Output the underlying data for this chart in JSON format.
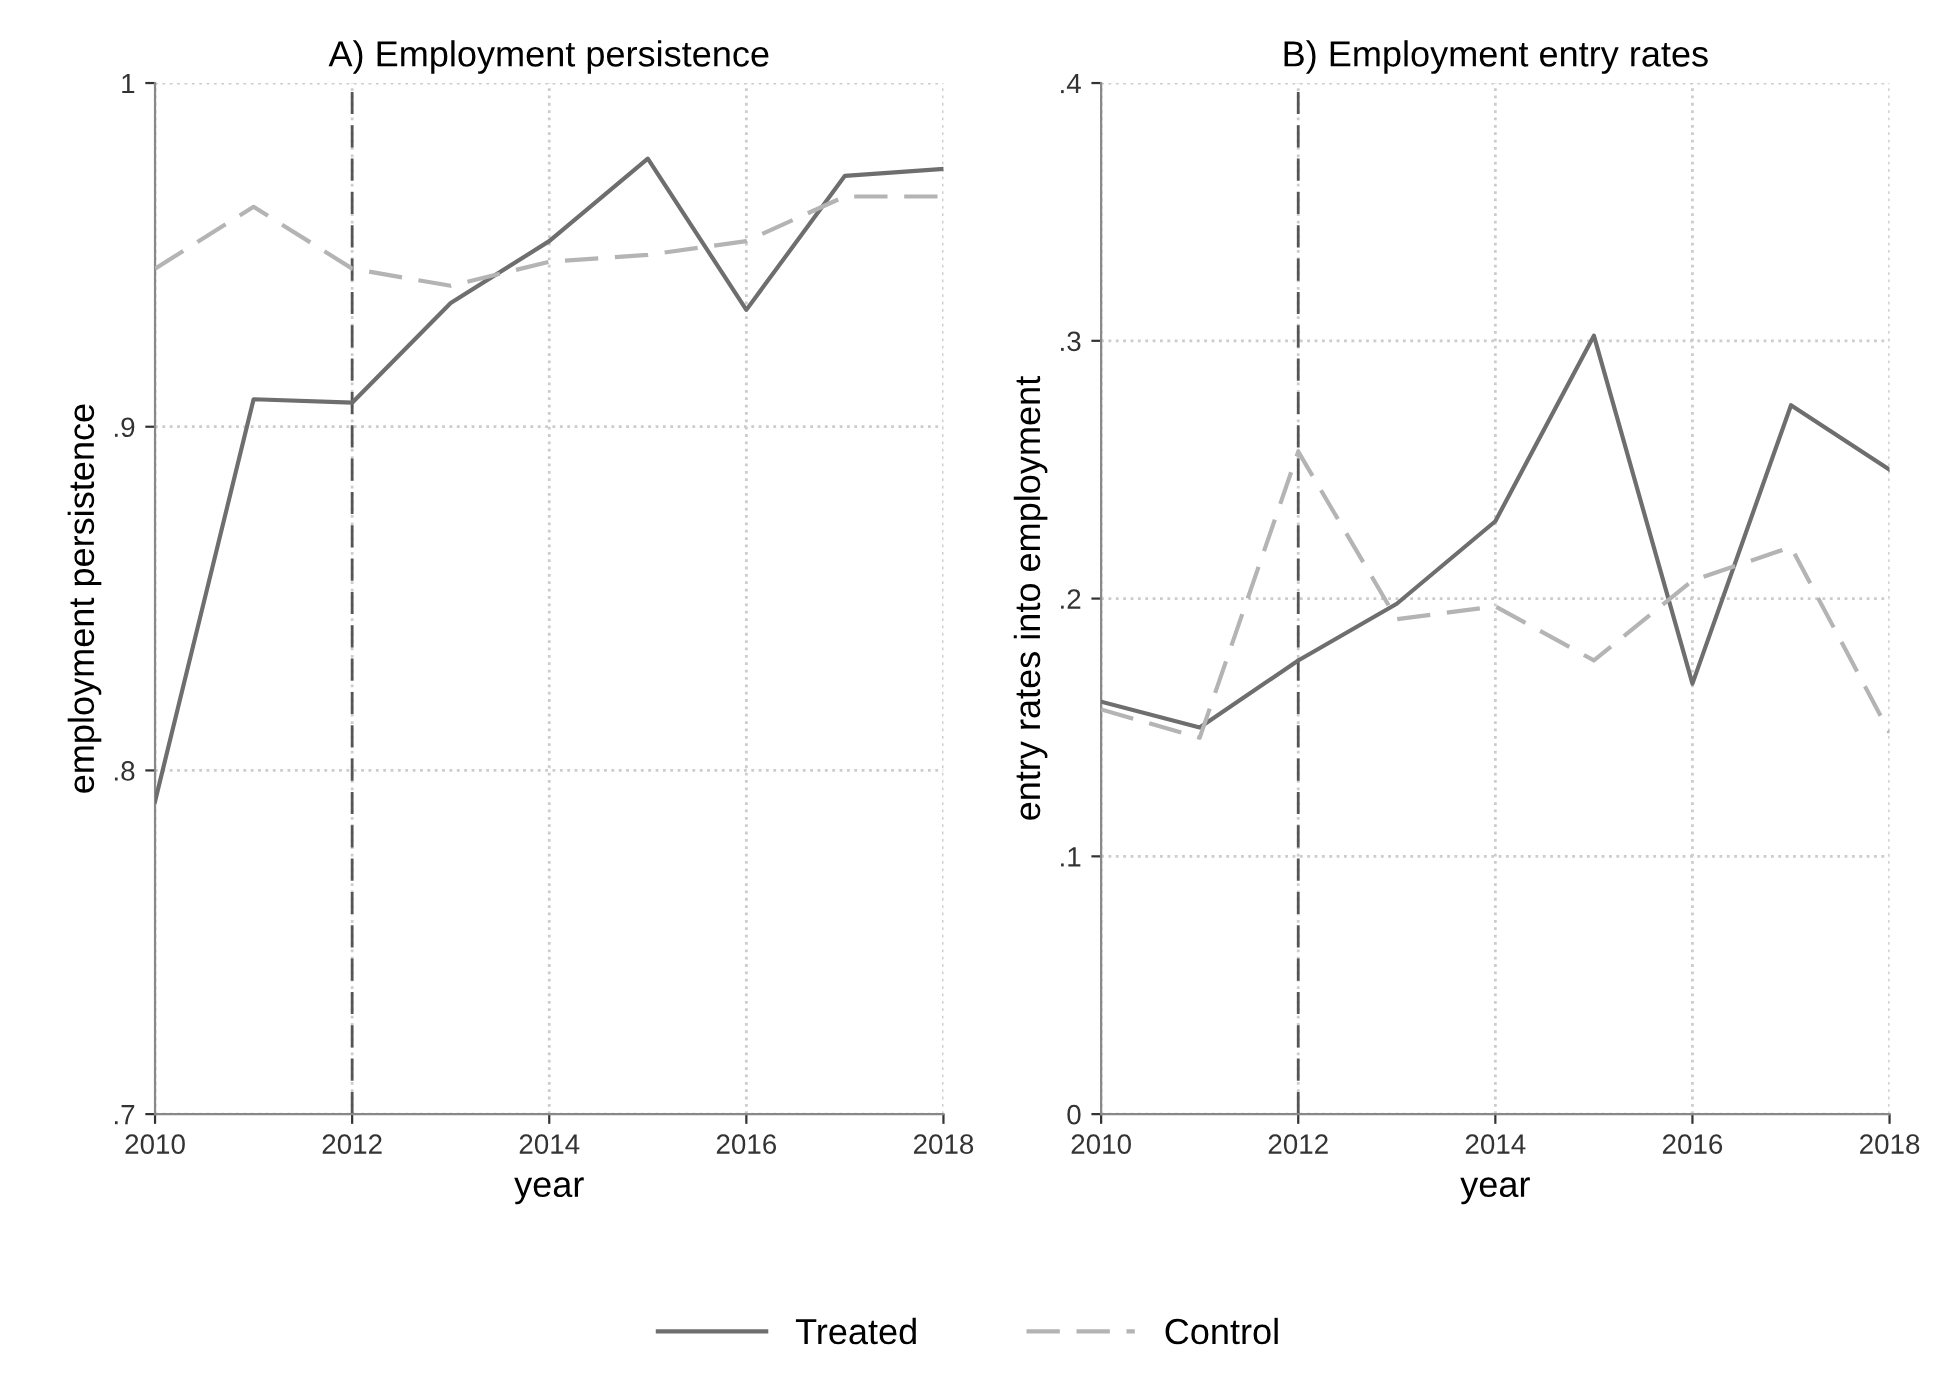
{
  "chart_data": [
    {
      "type": "line",
      "title": "A) Employment persistence",
      "xlabel": "year",
      "ylabel": "employment persistence",
      "x": [
        2010,
        2011,
        2012,
        2013,
        2014,
        2015,
        2016,
        2017,
        2018
      ],
      "series": [
        {
          "name": "Treated",
          "color": "#6e6e6e",
          "line_style": "solid",
          "values": [
            0.791,
            0.908,
            0.907,
            0.936,
            0.954,
            0.978,
            0.934,
            0.973,
            0.975
          ]
        },
        {
          "name": "Control",
          "color": "#b4b4b4",
          "line_style": "dashed",
          "values": [
            0.946,
            0.964,
            0.946,
            0.941,
            0.948,
            0.95,
            0.954,
            0.967,
            0.967
          ]
        }
      ],
      "xlim": [
        2010,
        2018
      ],
      "xticks": [
        2010,
        2012,
        2014,
        2016,
        2018
      ],
      "ylim": [
        0.7,
        1
      ],
      "yticks": [
        {
          "value": 0.7,
          "label": ".7"
        },
        {
          "value": 0.8,
          "label": ".8"
        },
        {
          "value": 0.9,
          "label": ".9"
        },
        1
      ],
      "ref_lines": [
        {
          "axis": "x",
          "value": 2012,
          "color": "#555555",
          "line_style": "dashed"
        }
      ],
      "grid": true,
      "legend": "bottom"
    },
    {
      "type": "line",
      "title": "B) Employment entry rates",
      "xlabel": "year",
      "ylabel": "entry rates into employment",
      "x": [
        2010,
        2011,
        2012,
        2013,
        2014,
        2015,
        2016,
        2017,
        2018
      ],
      "series": [
        {
          "color": "#6e6e6e",
          "line_style": "solid",
          "values": [
            0.16,
            0.15,
            0.176,
            0.198,
            0.23,
            0.302,
            0.167,
            0.275,
            0.25
          ]
        },
        {
          "color": "#b4b4b4",
          "line_style": "dashed",
          "values": [
            0.157,
            0.146,
            0.257,
            0.192,
            0.197,
            0.176,
            0.207,
            0.22,
            0.148
          ]
        }
      ],
      "xlim": [
        2010,
        2018
      ],
      "xticks": [
        2010,
        2012,
        2014,
        2016,
        2018
      ],
      "ylim": [
        0,
        0.4
      ],
      "yticks": [
        0,
        {
          "value": 0.1,
          "label": ".1"
        },
        {
          "value": 0.2,
          "label": ".2"
        },
        {
          "value": 0.3,
          "label": ".3"
        },
        {
          "value": 0.4,
          "label": ".4"
        }
      ],
      "ref_lines": [
        {
          "axis": "x",
          "value": 2012,
          "color": "#555555",
          "line_style": "dashed"
        }
      ],
      "grid": true
    }
  ]
}
